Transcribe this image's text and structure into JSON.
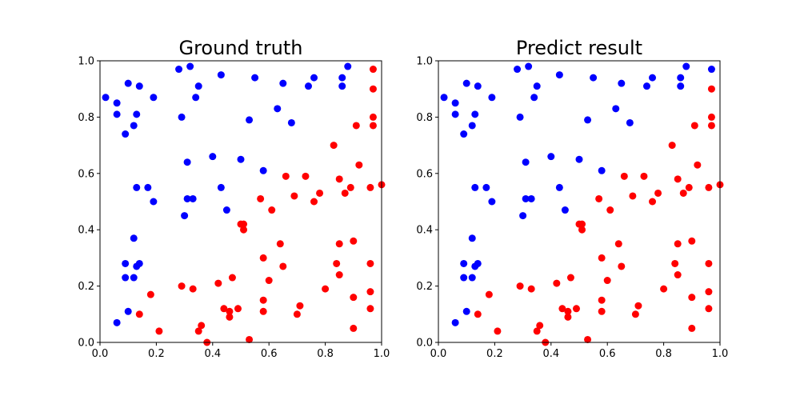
{
  "chart_data": [
    {
      "type": "scatter",
      "title": "Ground truth",
      "xlabel": "",
      "ylabel": "",
      "xlim": [
        0,
        1
      ],
      "ylim": [
        0,
        1
      ],
      "xticks": [
        "0.0",
        "0.2",
        "0.4",
        "0.6",
        "0.8",
        "1.0"
      ],
      "yticks": [
        "0.0",
        "0.2",
        "0.4",
        "0.6",
        "0.8",
        "1.0"
      ],
      "grid": false,
      "series": [
        {
          "color": "#0000ff",
          "points": [
            [
              0.02,
              0.87
            ],
            [
              0.06,
              0.85
            ],
            [
              0.1,
              0.92
            ],
            [
              0.14,
              0.91
            ],
            [
              0.06,
              0.81
            ],
            [
              0.13,
              0.81
            ],
            [
              0.12,
              0.77
            ],
            [
              0.09,
              0.74
            ],
            [
              0.19,
              0.87
            ],
            [
              0.28,
              0.97
            ],
            [
              0.32,
              0.98
            ],
            [
              0.43,
              0.95
            ],
            [
              0.35,
              0.91
            ],
            [
              0.34,
              0.87
            ],
            [
              0.29,
              0.8
            ],
            [
              0.55,
              0.94
            ],
            [
              0.65,
              0.92
            ],
            [
              0.53,
              0.79
            ],
            [
              0.63,
              0.83
            ],
            [
              0.68,
              0.78
            ],
            [
              0.74,
              0.91
            ],
            [
              0.76,
              0.94
            ],
            [
              0.86,
              0.94
            ],
            [
              0.88,
              0.98
            ],
            [
              0.86,
              0.91
            ],
            [
              0.4,
              0.66
            ],
            [
              0.31,
              0.64
            ],
            [
              0.5,
              0.65
            ],
            [
              0.58,
              0.61
            ],
            [
              0.13,
              0.55
            ],
            [
              0.17,
              0.55
            ],
            [
              0.19,
              0.5
            ],
            [
              0.31,
              0.51
            ],
            [
              0.33,
              0.51
            ],
            [
              0.3,
              0.45
            ],
            [
              0.43,
              0.55
            ],
            [
              0.45,
              0.47
            ],
            [
              0.12,
              0.37
            ],
            [
              0.09,
              0.28
            ],
            [
              0.13,
              0.27
            ],
            [
              0.14,
              0.28
            ],
            [
              0.09,
              0.23
            ],
            [
              0.12,
              0.23
            ],
            [
              0.1,
              0.11
            ],
            [
              0.06,
              0.07
            ]
          ]
        },
        {
          "color": "#ff0000",
          "points": [
            [
              0.97,
              0.97
            ],
            [
              0.97,
              0.9
            ],
            [
              0.97,
              0.8
            ],
            [
              0.91,
              0.77
            ],
            [
              0.97,
              0.77
            ],
            [
              0.83,
              0.7
            ],
            [
              0.92,
              0.63
            ],
            [
              0.66,
              0.59
            ],
            [
              0.73,
              0.59
            ],
            [
              0.85,
              0.58
            ],
            [
              0.89,
              0.55
            ],
            [
              0.96,
              0.55
            ],
            [
              1.0,
              0.56
            ],
            [
              0.57,
              0.51
            ],
            [
              0.69,
              0.52
            ],
            [
              0.78,
              0.53
            ],
            [
              0.76,
              0.5
            ],
            [
              0.87,
              0.53
            ],
            [
              0.61,
              0.47
            ],
            [
              0.5,
              0.42
            ],
            [
              0.51,
              0.42
            ],
            [
              0.51,
              0.4
            ],
            [
              0.58,
              0.3
            ],
            [
              0.64,
              0.35
            ],
            [
              0.65,
              0.27
            ],
            [
              0.84,
              0.28
            ],
            [
              0.85,
              0.35
            ],
            [
              0.9,
              0.36
            ],
            [
              0.96,
              0.28
            ],
            [
              0.29,
              0.2
            ],
            [
              0.33,
              0.19
            ],
            [
              0.42,
              0.21
            ],
            [
              0.47,
              0.23
            ],
            [
              0.6,
              0.22
            ],
            [
              0.85,
              0.24
            ],
            [
              0.8,
              0.19
            ],
            [
              0.96,
              0.18
            ],
            [
              0.18,
              0.17
            ],
            [
              0.14,
              0.1
            ],
            [
              0.44,
              0.12
            ],
            [
              0.46,
              0.11
            ],
            [
              0.49,
              0.12
            ],
            [
              0.46,
              0.09
            ],
            [
              0.58,
              0.15
            ],
            [
              0.58,
              0.11
            ],
            [
              0.71,
              0.13
            ],
            [
              0.7,
              0.1
            ],
            [
              0.9,
              0.16
            ],
            [
              0.96,
              0.12
            ],
            [
              0.21,
              0.04
            ],
            [
              0.36,
              0.06
            ],
            [
              0.35,
              0.04
            ],
            [
              0.38,
              0.0
            ],
            [
              0.53,
              0.01
            ],
            [
              0.9,
              0.05
            ]
          ]
        }
      ]
    },
    {
      "type": "scatter",
      "title": "Predict result",
      "xlabel": "",
      "ylabel": "",
      "xlim": [
        0,
        1
      ],
      "ylim": [
        0,
        1
      ],
      "xticks": [
        "0.0",
        "0.2",
        "0.4",
        "0.6",
        "0.8",
        "1.0"
      ],
      "yticks": [
        "0.0",
        "0.2",
        "0.4",
        "0.6",
        "0.8",
        "1.0"
      ],
      "grid": false,
      "series": [
        {
          "color": "#0000ff",
          "points": [
            [
              0.02,
              0.87
            ],
            [
              0.06,
              0.85
            ],
            [
              0.1,
              0.92
            ],
            [
              0.14,
              0.91
            ],
            [
              0.06,
              0.81
            ],
            [
              0.13,
              0.81
            ],
            [
              0.12,
              0.77
            ],
            [
              0.09,
              0.74
            ],
            [
              0.19,
              0.87
            ],
            [
              0.28,
              0.97
            ],
            [
              0.32,
              0.98
            ],
            [
              0.43,
              0.95
            ],
            [
              0.35,
              0.91
            ],
            [
              0.34,
              0.87
            ],
            [
              0.29,
              0.8
            ],
            [
              0.55,
              0.94
            ],
            [
              0.65,
              0.92
            ],
            [
              0.53,
              0.79
            ],
            [
              0.63,
              0.83
            ],
            [
              0.68,
              0.78
            ],
            [
              0.74,
              0.91
            ],
            [
              0.76,
              0.94
            ],
            [
              0.86,
              0.94
            ],
            [
              0.88,
              0.98
            ],
            [
              0.86,
              0.91
            ],
            [
              0.97,
              0.97
            ],
            [
              0.4,
              0.66
            ],
            [
              0.31,
              0.64
            ],
            [
              0.5,
              0.65
            ],
            [
              0.58,
              0.61
            ],
            [
              0.13,
              0.55
            ],
            [
              0.17,
              0.55
            ],
            [
              0.19,
              0.5
            ],
            [
              0.31,
              0.51
            ],
            [
              0.33,
              0.51
            ],
            [
              0.3,
              0.45
            ],
            [
              0.43,
              0.55
            ],
            [
              0.45,
              0.47
            ],
            [
              0.12,
              0.37
            ],
            [
              0.09,
              0.28
            ],
            [
              0.13,
              0.27
            ],
            [
              0.14,
              0.28
            ],
            [
              0.09,
              0.23
            ],
            [
              0.12,
              0.23
            ],
            [
              0.1,
              0.11
            ],
            [
              0.06,
              0.07
            ]
          ]
        },
        {
          "color": "#ff0000",
          "points": [
            [
              0.97,
              0.9
            ],
            [
              0.97,
              0.8
            ],
            [
              0.91,
              0.77
            ],
            [
              0.97,
              0.77
            ],
            [
              0.83,
              0.7
            ],
            [
              0.92,
              0.63
            ],
            [
              0.66,
              0.59
            ],
            [
              0.73,
              0.59
            ],
            [
              0.85,
              0.58
            ],
            [
              0.89,
              0.55
            ],
            [
              0.96,
              0.55
            ],
            [
              1.0,
              0.56
            ],
            [
              0.57,
              0.51
            ],
            [
              0.69,
              0.52
            ],
            [
              0.78,
              0.53
            ],
            [
              0.76,
              0.5
            ],
            [
              0.87,
              0.53
            ],
            [
              0.61,
              0.47
            ],
            [
              0.5,
              0.42
            ],
            [
              0.51,
              0.42
            ],
            [
              0.51,
              0.4
            ],
            [
              0.58,
              0.3
            ],
            [
              0.64,
              0.35
            ],
            [
              0.65,
              0.27
            ],
            [
              0.84,
              0.28
            ],
            [
              0.85,
              0.35
            ],
            [
              0.9,
              0.36
            ],
            [
              0.96,
              0.28
            ],
            [
              0.29,
              0.2
            ],
            [
              0.33,
              0.19
            ],
            [
              0.42,
              0.21
            ],
            [
              0.47,
              0.23
            ],
            [
              0.6,
              0.22
            ],
            [
              0.85,
              0.24
            ],
            [
              0.8,
              0.19
            ],
            [
              0.96,
              0.18
            ],
            [
              0.18,
              0.17
            ],
            [
              0.14,
              0.1
            ],
            [
              0.44,
              0.12
            ],
            [
              0.46,
              0.11
            ],
            [
              0.49,
              0.12
            ],
            [
              0.46,
              0.09
            ],
            [
              0.58,
              0.15
            ],
            [
              0.58,
              0.11
            ],
            [
              0.71,
              0.13
            ],
            [
              0.7,
              0.1
            ],
            [
              0.9,
              0.16
            ],
            [
              0.96,
              0.12
            ],
            [
              0.21,
              0.04
            ],
            [
              0.36,
              0.06
            ],
            [
              0.35,
              0.04
            ],
            [
              0.38,
              0.0
            ],
            [
              0.53,
              0.01
            ],
            [
              0.9,
              0.05
            ]
          ]
        }
      ]
    }
  ]
}
